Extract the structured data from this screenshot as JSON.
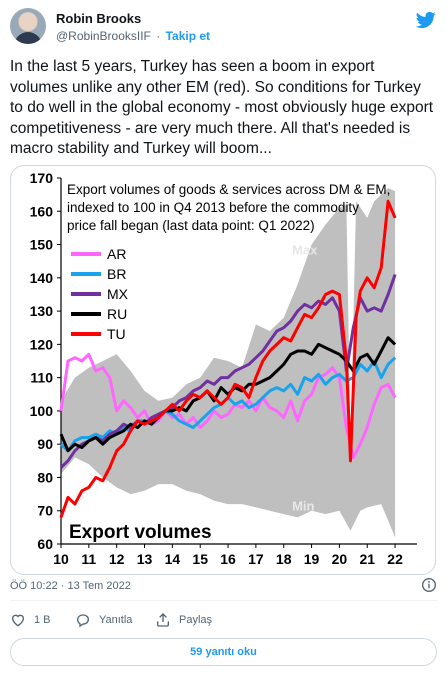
{
  "author": {
    "name": "Robin Brooks",
    "handle": "@RobinBrooksIIF",
    "separator": "·",
    "follow_label": "Takip et"
  },
  "tweet_text": "In the last 5 years, Turkey has seen a boom in export volumes unlike any other EM (red). So conditions for Turkey to do well in the global economy - most obviously huge export competitiveness - are very much there. All that's needed is macro stability and Turkey will boom...",
  "timestamp": "ÖÖ 10:22 · 13 Tem 2022",
  "actions": {
    "like_count": "1 B",
    "reply_label": "Yanıtla",
    "share_label": "Paylaş"
  },
  "read_replies_label": "59 yanıtı oku",
  "colors": {
    "AR": "#ff66ff",
    "BR": "#19a3ea",
    "MX": "#7030a0",
    "RU": "#000000",
    "TU": "#ff0000",
    "band": "#bfbfbf",
    "link": "#1d9bf0"
  },
  "chart_data": {
    "type": "line",
    "title": "Export volumes of goods & services across DM & EM, indexed to 100 in Q4 2013 before the commodity price fall began (last data point: Q1 2022)",
    "title_lines": [
      "Export volumes of goods & services across DM & EM,",
      "indexed to 100 in Q4 2013  before the commodity",
      "price fall began (last data point: Q1 2022)"
    ],
    "corner_label": "Export  volumes",
    "max_label": "Max",
    "min_label": "Min",
    "xlim": [
      2010,
      2022.5
    ],
    "ylim": [
      60,
      170
    ],
    "yticks": [
      60,
      70,
      80,
      90,
      100,
      110,
      120,
      130,
      140,
      150,
      160,
      170
    ],
    "xticks": [
      10,
      11,
      12,
      13,
      14,
      15,
      16,
      17,
      18,
      19,
      20,
      21,
      22
    ],
    "legend_position": "left",
    "band_top": [
      [
        2010.0,
        103
      ],
      [
        2010.5,
        110
      ],
      [
        2011.0,
        113
      ],
      [
        2011.5,
        115
      ],
      [
        2012.0,
        117
      ],
      [
        2012.5,
        112
      ],
      [
        2013.0,
        106
      ],
      [
        2013.5,
        103
      ],
      [
        2014.0,
        104
      ],
      [
        2014.5,
        108
      ],
      [
        2015.0,
        110
      ],
      [
        2015.5,
        116
      ],
      [
        2016.0,
        115
      ],
      [
        2016.5,
        113
      ],
      [
        2017.0,
        126
      ],
      [
        2017.5,
        124
      ],
      [
        2018.0,
        128
      ],
      [
        2018.5,
        138
      ],
      [
        2019.0,
        150
      ],
      [
        2019.5,
        156
      ],
      [
        2020.0,
        161
      ],
      [
        2020.25,
        162
      ],
      [
        2020.4,
        90
      ],
      [
        2020.6,
        163
      ],
      [
        2021.0,
        158
      ],
      [
        2021.25,
        163
      ],
      [
        2021.5,
        165
      ],
      [
        2021.75,
        167
      ],
      [
        2022.0,
        166
      ]
    ],
    "band_bottom": [
      [
        2010.0,
        81
      ],
      [
        2010.5,
        86
      ],
      [
        2011.0,
        84
      ],
      [
        2011.5,
        80
      ],
      [
        2012.0,
        77
      ],
      [
        2012.5,
        75
      ],
      [
        2013.0,
        76
      ],
      [
        2013.5,
        78
      ],
      [
        2014.0,
        78
      ],
      [
        2014.5,
        76
      ],
      [
        2015.0,
        75
      ],
      [
        2015.5,
        73
      ],
      [
        2016.0,
        72
      ],
      [
        2016.5,
        72
      ],
      [
        2017.0,
        71
      ],
      [
        2017.5,
        70
      ],
      [
        2018.0,
        69
      ],
      [
        2018.5,
        68
      ],
      [
        2019.0,
        70
      ],
      [
        2019.5,
        69
      ],
      [
        2020.0,
        70
      ],
      [
        2020.4,
        64
      ],
      [
        2020.75,
        70
      ],
      [
        2021.0,
        71
      ],
      [
        2021.5,
        72
      ],
      [
        2022.0,
        62
      ]
    ],
    "series": [
      {
        "name": "AR",
        "points": [
          [
            2010.0,
            100
          ],
          [
            2010.25,
            115
          ],
          [
            2010.5,
            116
          ],
          [
            2010.75,
            115
          ],
          [
            2011.0,
            117
          ],
          [
            2011.25,
            112
          ],
          [
            2011.5,
            113
          ],
          [
            2011.75,
            110
          ],
          [
            2012.0,
            100
          ],
          [
            2012.25,
            103
          ],
          [
            2012.5,
            101
          ],
          [
            2012.75,
            98
          ],
          [
            2013.0,
            100
          ],
          [
            2013.25,
            96
          ],
          [
            2013.5,
            97
          ],
          [
            2013.75,
            100
          ],
          [
            2014.0,
            98
          ],
          [
            2014.25,
            99
          ],
          [
            2014.5,
            96
          ],
          [
            2014.75,
            98
          ],
          [
            2015.0,
            95
          ],
          [
            2015.25,
            97
          ],
          [
            2015.5,
            100
          ],
          [
            2015.75,
            98
          ],
          [
            2016.0,
            99
          ],
          [
            2016.25,
            102
          ],
          [
            2016.5,
            101
          ],
          [
            2016.75,
            103
          ],
          [
            2017.0,
            100
          ],
          [
            2017.25,
            104
          ],
          [
            2017.5,
            101
          ],
          [
            2017.75,
            100
          ],
          [
            2018.0,
            98
          ],
          [
            2018.25,
            103
          ],
          [
            2018.5,
            97
          ],
          [
            2018.75,
            103
          ],
          [
            2019.0,
            105
          ],
          [
            2019.25,
            110
          ],
          [
            2019.5,
            111
          ],
          [
            2019.75,
            113
          ],
          [
            2020.0,
            110
          ],
          [
            2020.25,
            95
          ],
          [
            2020.5,
            86
          ],
          [
            2020.75,
            90
          ],
          [
            2021.0,
            95
          ],
          [
            2021.25,
            102
          ],
          [
            2021.5,
            107
          ],
          [
            2021.75,
            108
          ],
          [
            2022.0,
            104
          ]
        ]
      },
      {
        "name": "BR",
        "points": [
          [
            2010.0,
            90
          ],
          [
            2010.25,
            88
          ],
          [
            2010.5,
            91
          ],
          [
            2010.75,
            92
          ],
          [
            2011.0,
            92
          ],
          [
            2011.25,
            93
          ],
          [
            2011.5,
            92
          ],
          [
            2011.75,
            94
          ],
          [
            2012.0,
            93
          ],
          [
            2012.25,
            95
          ],
          [
            2012.5,
            94
          ],
          [
            2012.75,
            97
          ],
          [
            2013.0,
            97
          ],
          [
            2013.25,
            96
          ],
          [
            2013.5,
            98
          ],
          [
            2013.75,
            100
          ],
          [
            2014.0,
            99
          ],
          [
            2014.25,
            97
          ],
          [
            2014.5,
            96
          ],
          [
            2014.75,
            95
          ],
          [
            2015.0,
            97
          ],
          [
            2015.25,
            99
          ],
          [
            2015.5,
            101
          ],
          [
            2015.75,
            102
          ],
          [
            2016.0,
            104
          ],
          [
            2016.25,
            102
          ],
          [
            2016.5,
            103
          ],
          [
            2016.75,
            101
          ],
          [
            2017.0,
            102
          ],
          [
            2017.25,
            104
          ],
          [
            2017.5,
            106
          ],
          [
            2017.75,
            107
          ],
          [
            2018.0,
            106
          ],
          [
            2018.25,
            108
          ],
          [
            2018.5,
            105
          ],
          [
            2018.75,
            110
          ],
          [
            2019.0,
            109
          ],
          [
            2019.25,
            111
          ],
          [
            2019.5,
            108
          ],
          [
            2019.75,
            110
          ],
          [
            2020.0,
            111
          ],
          [
            2020.25,
            109
          ],
          [
            2020.5,
            110
          ],
          [
            2020.75,
            114
          ],
          [
            2021.0,
            112
          ],
          [
            2021.25,
            115
          ],
          [
            2021.5,
            110
          ],
          [
            2021.75,
            114
          ],
          [
            2022.0,
            116
          ]
        ]
      },
      {
        "name": "MX",
        "points": [
          [
            2010.0,
            83
          ],
          [
            2010.25,
            85
          ],
          [
            2010.5,
            88
          ],
          [
            2010.75,
            90
          ],
          [
            2011.0,
            91
          ],
          [
            2011.25,
            92
          ],
          [
            2011.5,
            91
          ],
          [
            2011.75,
            93
          ],
          [
            2012.0,
            94
          ],
          [
            2012.25,
            96
          ],
          [
            2012.5,
            95
          ],
          [
            2012.75,
            97
          ],
          [
            2013.0,
            96
          ],
          [
            2013.25,
            98
          ],
          [
            2013.5,
            99
          ],
          [
            2013.75,
            100
          ],
          [
            2014.0,
            101
          ],
          [
            2014.25,
            103
          ],
          [
            2014.5,
            104
          ],
          [
            2014.75,
            106
          ],
          [
            2015.0,
            107
          ],
          [
            2015.25,
            109
          ],
          [
            2015.5,
            108
          ],
          [
            2015.75,
            110
          ],
          [
            2016.0,
            110
          ],
          [
            2016.25,
            112
          ],
          [
            2016.5,
            113
          ],
          [
            2016.75,
            114
          ],
          [
            2017.0,
            116
          ],
          [
            2017.25,
            118
          ],
          [
            2017.5,
            121
          ],
          [
            2017.75,
            124
          ],
          [
            2018.0,
            125
          ],
          [
            2018.25,
            127
          ],
          [
            2018.5,
            130
          ],
          [
            2018.75,
            132
          ],
          [
            2019.0,
            131
          ],
          [
            2019.25,
            133
          ],
          [
            2019.5,
            132
          ],
          [
            2019.75,
            134
          ],
          [
            2020.0,
            130
          ],
          [
            2020.25,
            112
          ],
          [
            2020.5,
            125
          ],
          [
            2020.75,
            134
          ],
          [
            2021.0,
            130
          ],
          [
            2021.25,
            131
          ],
          [
            2021.5,
            130
          ],
          [
            2021.75,
            135
          ],
          [
            2022.0,
            141
          ]
        ]
      },
      {
        "name": "RU",
        "points": [
          [
            2010.0,
            93
          ],
          [
            2010.25,
            88
          ],
          [
            2010.5,
            90
          ],
          [
            2010.75,
            89
          ],
          [
            2011.0,
            91
          ],
          [
            2011.25,
            92
          ],
          [
            2011.5,
            90
          ],
          [
            2011.75,
            92
          ],
          [
            2012.0,
            93
          ],
          [
            2012.25,
            94
          ],
          [
            2012.5,
            96
          ],
          [
            2012.75,
            95
          ],
          [
            2013.0,
            97
          ],
          [
            2013.25,
            96
          ],
          [
            2013.5,
            98
          ],
          [
            2013.75,
            100
          ],
          [
            2014.0,
            100
          ],
          [
            2014.25,
            101
          ],
          [
            2014.5,
            100
          ],
          [
            2014.75,
            103
          ],
          [
            2015.0,
            104
          ],
          [
            2015.25,
            106
          ],
          [
            2015.5,
            103
          ],
          [
            2015.75,
            107
          ],
          [
            2016.0,
            105
          ],
          [
            2016.25,
            107
          ],
          [
            2016.5,
            106
          ],
          [
            2016.75,
            108
          ],
          [
            2017.0,
            108
          ],
          [
            2017.25,
            109
          ],
          [
            2017.5,
            110
          ],
          [
            2017.75,
            112
          ],
          [
            2018.0,
            114
          ],
          [
            2018.25,
            117
          ],
          [
            2018.5,
            118
          ],
          [
            2018.75,
            118
          ],
          [
            2019.0,
            117
          ],
          [
            2019.25,
            120
          ],
          [
            2019.5,
            119
          ],
          [
            2019.75,
            118
          ],
          [
            2020.0,
            117
          ],
          [
            2020.25,
            115
          ],
          [
            2020.5,
            112
          ],
          [
            2020.75,
            116
          ],
          [
            2021.0,
            117
          ],
          [
            2021.25,
            114
          ],
          [
            2021.5,
            118
          ],
          [
            2021.75,
            122
          ],
          [
            2022.0,
            120
          ]
        ]
      },
      {
        "name": "TU",
        "points": [
          [
            2010.0,
            68
          ],
          [
            2010.25,
            74
          ],
          [
            2010.5,
            72
          ],
          [
            2010.75,
            76
          ],
          [
            2011.0,
            77
          ],
          [
            2011.25,
            80
          ],
          [
            2011.5,
            79
          ],
          [
            2011.75,
            83
          ],
          [
            2012.0,
            88
          ],
          [
            2012.25,
            90
          ],
          [
            2012.5,
            94
          ],
          [
            2012.75,
            97
          ],
          [
            2013.0,
            96
          ],
          [
            2013.25,
            97
          ],
          [
            2013.5,
            98
          ],
          [
            2013.75,
            100
          ],
          [
            2014.0,
            102
          ],
          [
            2014.25,
            100
          ],
          [
            2014.5,
            103
          ],
          [
            2014.75,
            105
          ],
          [
            2015.0,
            104
          ],
          [
            2015.25,
            106
          ],
          [
            2015.5,
            104
          ],
          [
            2015.75,
            102
          ],
          [
            2016.0,
            104
          ],
          [
            2016.25,
            108
          ],
          [
            2016.5,
            107
          ],
          [
            2016.75,
            104
          ],
          [
            2017.0,
            110
          ],
          [
            2017.25,
            115
          ],
          [
            2017.5,
            118
          ],
          [
            2017.75,
            120
          ],
          [
            2018.0,
            122
          ],
          [
            2018.25,
            121
          ],
          [
            2018.5,
            125
          ],
          [
            2018.75,
            129
          ],
          [
            2019.0,
            128
          ],
          [
            2019.25,
            131
          ],
          [
            2019.5,
            135
          ],
          [
            2019.75,
            136
          ],
          [
            2020.0,
            135
          ],
          [
            2020.25,
            115
          ],
          [
            2020.4,
            85
          ],
          [
            2020.6,
            128
          ],
          [
            2020.75,
            136
          ],
          [
            2021.0,
            140
          ],
          [
            2021.25,
            137
          ],
          [
            2021.5,
            143
          ],
          [
            2021.75,
            163
          ],
          [
            2022.0,
            158
          ]
        ]
      }
    ]
  }
}
